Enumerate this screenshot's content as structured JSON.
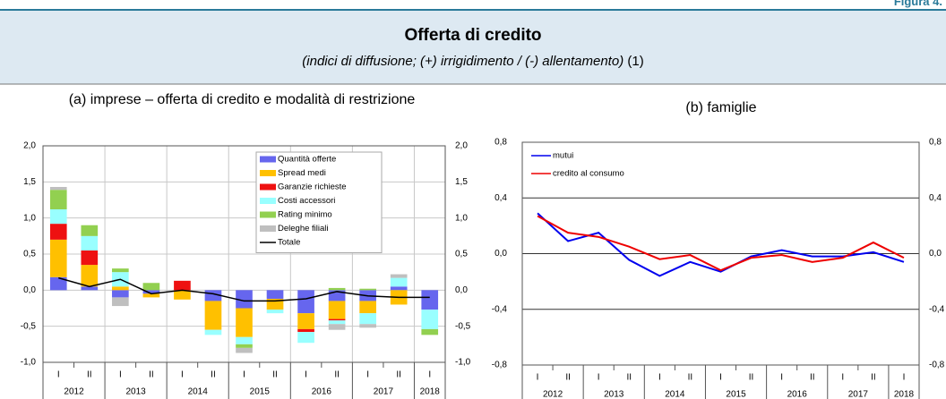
{
  "header": {
    "label": "Figura 4."
  },
  "title": "Offerta di credito",
  "subtitle": "(indici di diffusione; (+) irrigidimento / (-) allentamento)",
  "subtitle_note": "(1)",
  "chart_data": [
    {
      "type": "bar",
      "stacked": true,
      "title": "(a) imprese – offerta di credito e modalità di restrizione",
      "categories": [
        "I",
        "II",
        "I",
        "II",
        "I",
        "II",
        "I",
        "II",
        "I",
        "II",
        "I",
        "II",
        "I"
      ],
      "years": [
        "2012",
        "2013",
        "2014",
        "2015",
        "2016",
        "2017",
        "2018"
      ],
      "ylim": [
        -1.0,
        2.0
      ],
      "yticks": [
        {
          "value": -1.0,
          "label": "-1,0"
        },
        {
          "value": -0.5,
          "label": "-0,5"
        },
        {
          "value": 0.0,
          "label": "0,0"
        },
        {
          "value": 0.5,
          "label": "0,5"
        },
        {
          "value": 1.0,
          "label": "1,0"
        },
        {
          "value": 1.5,
          "label": "1,5"
        },
        {
          "value": 2.0,
          "label": "2,0"
        }
      ],
      "grid": true,
      "xgrid": true,
      "legend": "upper center",
      "series": [
        {
          "name": "Quantità offerte",
          "color": "#6666ee",
          "values": [
            0.18,
            0.05,
            -0.1,
            -0.05,
            0,
            -0.15,
            -0.25,
            -0.12,
            -0.32,
            -0.15,
            -0.15,
            0.05,
            -0.27
          ]
        },
        {
          "name": "Spread medi",
          "color": "#ffc000",
          "values": [
            0.52,
            0.3,
            0.05,
            -0.05,
            -0.13,
            -0.4,
            -0.4,
            -0.15,
            -0.22,
            -0.25,
            -0.17,
            -0.2,
            0
          ]
        },
        {
          "name": "Garanzie richieste",
          "color": "#ee1111",
          "values": [
            0.22,
            0.2,
            0,
            0,
            0.13,
            0,
            0,
            0,
            -0.04,
            -0.02,
            0,
            0,
            0
          ]
        },
        {
          "name": "Costi accessori",
          "color": "#99ffff",
          "values": [
            0.2,
            0.2,
            0.2,
            0,
            0,
            -0.07,
            -0.1,
            -0.05,
            -0.15,
            -0.05,
            -0.15,
            0.12,
            -0.27
          ]
        },
        {
          "name": "Rating minimo",
          "color": "#92d050",
          "values": [
            0.27,
            0.15,
            0.05,
            0.1,
            0,
            0,
            -0.05,
            0,
            0,
            0.03,
            0.02,
            0,
            -0.08
          ]
        },
        {
          "name": "Deleghe filiali",
          "color": "#bfbfbf",
          "values": [
            0.04,
            0,
            -0.12,
            0,
            0,
            0,
            -0.07,
            0,
            0,
            -0.08,
            -0.05,
            0.05,
            0
          ]
        },
        {
          "name": "Totale",
          "type": "line",
          "color": "#000000",
          "values": [
            0.17,
            0.05,
            0.15,
            -0.05,
            0.0,
            -0.05,
            -0.15,
            -0.15,
            -0.12,
            -0.02,
            -0.08,
            -0.1,
            -0.1
          ]
        }
      ]
    },
    {
      "type": "line",
      "title": "(b) famiglie",
      "categories": [
        "I",
        "II",
        "I",
        "II",
        "I",
        "II",
        "I",
        "II",
        "I",
        "II",
        "I",
        "II",
        "I"
      ],
      "years": [
        "2012",
        "2013",
        "2014",
        "2015",
        "2016",
        "2017",
        "2018"
      ],
      "ylim": [
        -0.8,
        0.8
      ],
      "yticks": [
        {
          "value": -0.8,
          "label": "-0,8"
        },
        {
          "value": -0.4,
          "label": "-0,4"
        },
        {
          "value": 0.0,
          "label": "0,0"
        },
        {
          "value": 0.4,
          "label": "0,4"
        },
        {
          "value": 0.8,
          "label": "0,8"
        }
      ],
      "grid": true,
      "legend": "upper left",
      "series": [
        {
          "name": "mutui",
          "color": "#0000ee",
          "values": [
            0.29,
            0.09,
            0.15,
            -0.045,
            -0.16,
            -0.06,
            -0.13,
            -0.02,
            0.025,
            -0.02,
            -0.02,
            0.01,
            -0.06
          ]
        },
        {
          "name": "credito al consumo",
          "color": "#ee0000",
          "values": [
            0.27,
            0.15,
            0.12,
            0.05,
            -0.04,
            -0.01,
            -0.12,
            -0.03,
            -0.01,
            -0.06,
            -0.03,
            0.08,
            -0.03
          ]
        }
      ]
    }
  ]
}
